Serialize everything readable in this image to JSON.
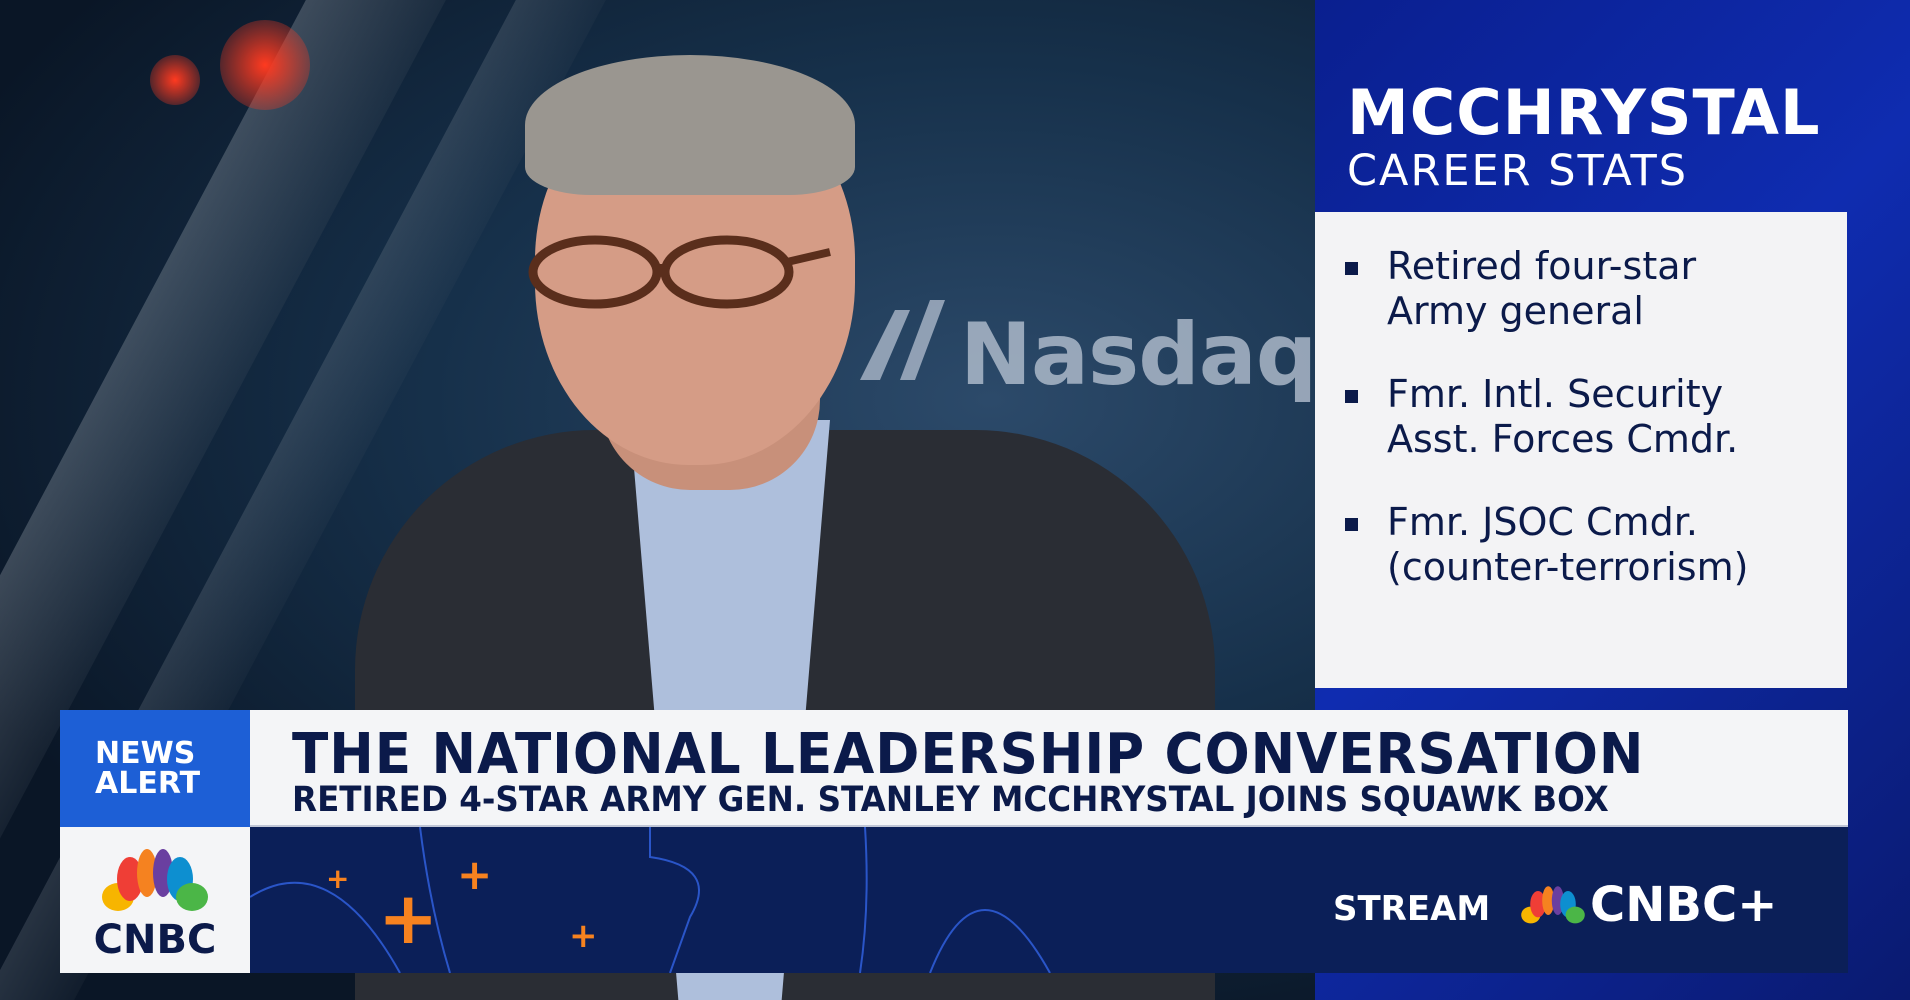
{
  "background": {
    "signage_text": "Nasdaq"
  },
  "sidebar_graphic": {
    "title": "MCCHRYSTAL",
    "subtitle": "CAREER STATS",
    "items": [
      {
        "line1": "Retired four-star",
        "line2": "Army general"
      },
      {
        "line1": "Fmr. Intl. Security",
        "line2": "Asst. Forces Cmdr."
      },
      {
        "line1": "Fmr. JSOC Cmdr.",
        "line2": "(counter-terrorism)"
      }
    ]
  },
  "lower_third": {
    "badge_line1": "NEWS",
    "badge_line2": "ALERT",
    "headline": "THE NATIONAL LEADERSHIP CONVERSATION",
    "subheadline": "RETIRED 4-STAR ARMY GEN. STANLEY MCCHRYSTAL JOINS SQUAWK BOX",
    "network_logo": "CNBC",
    "promo_label": "STREAM",
    "promo_brand": "CNBC+"
  },
  "colors": {
    "navy": "#0b1f58",
    "accent_blue": "#1d5fd6",
    "orange": "#f7821f",
    "panel_blue": "#0f2cb0"
  }
}
